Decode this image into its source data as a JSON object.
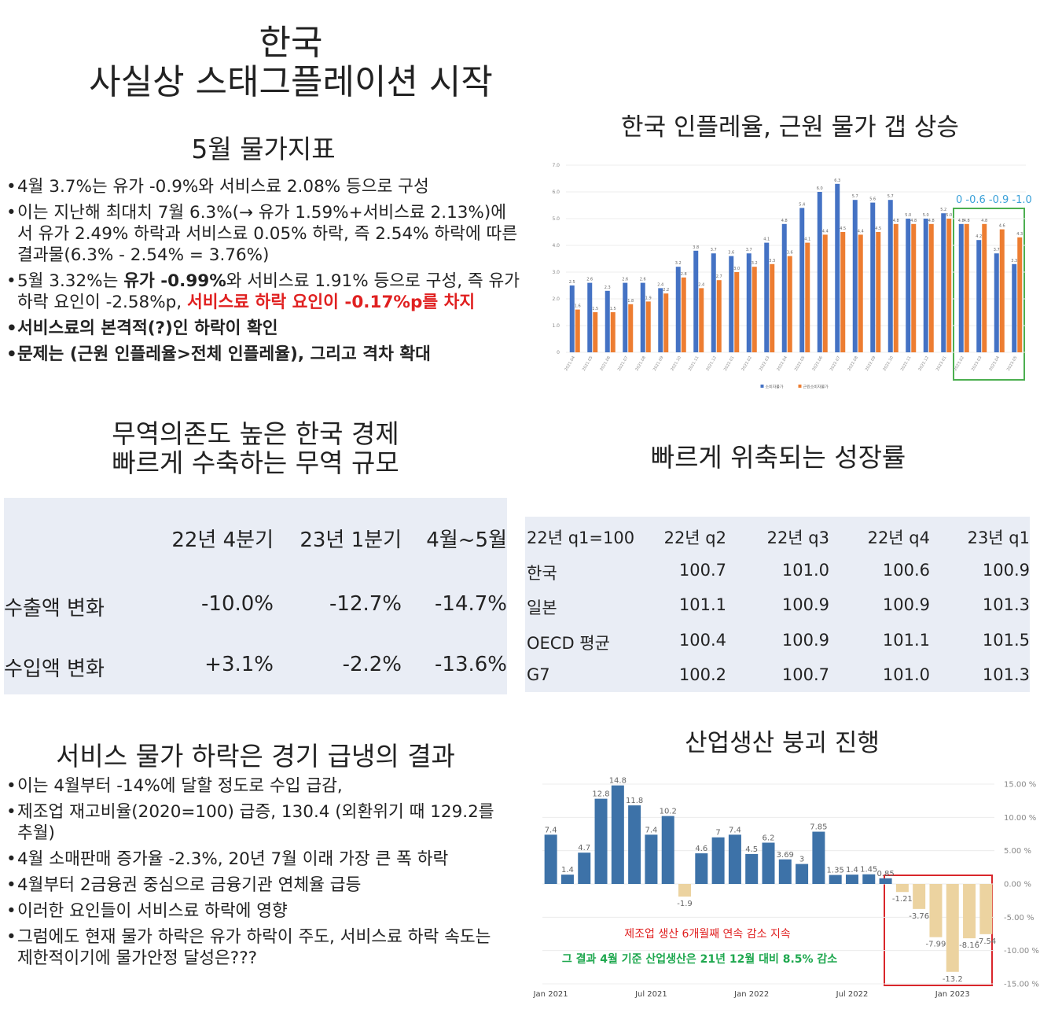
{
  "header": {
    "title_line1": "한국",
    "title_line2": "사실상 스태그플레이션 시작"
  },
  "cpi_section": {
    "title": "5월 물가지표",
    "bullets": [
      "4월 3.7%는 유가 -0.9%와 서비스료 2.08% 등으로 구성",
      "이는 지난해 최대치 7월 6.3%(→ 유가 1.59%+서비스료 2.13%)에서 유가 2.49% 하락과 서비스료 0.05% 하락, 즉 2.54% 하락에 따른 결과물(6.3% - 2.54% = 3.76%)",
      [
        "5월 3.32%는 ",
        "유가 -0.99%",
        "와 서비스료 1.91% 등으로 구성, 즉 유가 하락 요인이 -2.58%p, ",
        "서비스료 하락 요인이 -0.17%p를 차지"
      ],
      "서비스료의 본격적(?)인 하락이 확인",
      "문제는 (근원 인플레율>전체 인플레율), 그리고 격차 확대"
    ]
  },
  "trade_section": {
    "title_line1": "무역의존도 높은 한국 경제",
    "title_line2": "빠르게 수축하는 무역 규모",
    "table": {
      "columns": [
        "22년 4분기",
        "23년 1분기",
        "4월~5월"
      ],
      "rows": [
        {
          "label": "수출액 변화",
          "cells": [
            "-10.0%",
            "-12.7%",
            "-14.7%"
          ]
        },
        {
          "label": "수입액 변화",
          "cells": [
            "+3.1%",
            "-2.2%",
            "-13.6%"
          ]
        }
      ]
    }
  },
  "growth_section": {
    "title": "빠르게 위축되는 성장률",
    "table": {
      "columns": [
        "22년 q1=100",
        "22년 q2",
        "22년 q3",
        "22년 q4",
        "23년 q1"
      ],
      "rows": [
        {
          "label": "한국",
          "cells": [
            "100.7",
            "101.0",
            "100.6",
            "100.9"
          ]
        },
        {
          "label": "일본",
          "cells": [
            "101.1",
            "100.9",
            "100.9",
            "101.3"
          ]
        },
        {
          "label": "OECD 평균",
          "cells": [
            "100.4",
            "100.9",
            "101.1",
            "101.5"
          ]
        },
        {
          "label": "G7",
          "cells": [
            "100.2",
            "100.7",
            "101.0",
            "101.3"
          ]
        }
      ]
    }
  },
  "services_section": {
    "title": "서비스 물가 하락은 경기 급냉의 결과",
    "bullets": [
      "이는 4월부터 -14%에 달할 정도로 수입 급감,",
      "제조업 재고비율(2020=100) 급증, 130.4 (외환위기 때 129.2를 추월)",
      "4월 소매판매 증가율 -2.3%, 20년 7월 이래 가장 큰 폭 하락",
      "4월부터 2금융권 중심으로 금융기관 연체율 급등",
      "이러한 요인들이 서비스료 하락에 영향",
      "그럼에도 현재 물가 하락은 유가 하락이 주도, 서비스료 하락 속도는 제한적이기에 물가안정 달성은???"
    ]
  },
  "chart_data": [
    {
      "type": "bar",
      "title": "한국 인플레율, 근원 물가 갭 상승",
      "categories": [
        "2021.04",
        "2021.05",
        "2021.06",
        "2021.07",
        "2021.08",
        "2021.09",
        "2021.10",
        "2021.11",
        "2021.12",
        "2022.01",
        "2022.02",
        "2022.03",
        "2022.04",
        "2022.05",
        "2022.06",
        "2022.07",
        "2022.08",
        "2022.09",
        "2022.10",
        "2022.11",
        "2022.12",
        "2023.01",
        "2023.02",
        "2023.03",
        "2023.04",
        "2023.05"
      ],
      "series": [
        {
          "name": "소비자물가",
          "color": "#4472c4",
          "values": [
            2.5,
            2.6,
            2.3,
            2.6,
            2.6,
            2.4,
            3.2,
            3.8,
            3.7,
            3.6,
            3.7,
            4.1,
            4.8,
            5.4,
            6.0,
            6.3,
            5.7,
            5.6,
            5.7,
            5.0,
            5.0,
            5.2,
            4.8,
            4.2,
            3.7,
            3.3
          ],
          "value_labels": [
            "2.5",
            "2.6",
            "2.3",
            "2.6",
            "2.6",
            "2.4",
            "3.2",
            "3.8",
            "3.7",
            "3.6",
            "3.7",
            "4.1",
            "4.8",
            "5.4",
            "6.0",
            "6.3",
            "5.7",
            "5.6",
            "5.7",
            "5.0",
            "5.0",
            "5.2",
            "4.8",
            "4.2",
            "3.7",
            "3.3"
          ]
        },
        {
          "name": "근원소비자물가",
          "color": "#ed7d31",
          "values": [
            1.6,
            1.5,
            1.5,
            1.8,
            1.9,
            2.2,
            2.8,
            2.4,
            2.7,
            3.0,
            3.2,
            3.3,
            3.6,
            4.1,
            4.4,
            4.5,
            4.4,
            4.5,
            4.8,
            4.8,
            4.8,
            5.0,
            4.8,
            4.8,
            4.6,
            4.3
          ],
          "value_labels": [
            "1.6",
            "1.5",
            "1.5",
            "1.8",
            "1.9",
            "2.2",
            "2.8",
            "2.4",
            "2.7",
            "3.0",
            "3.2",
            "3.3",
            "3.6",
            "4.1",
            "4.4",
            "4.5",
            "4.4",
            "4.5",
            "4.8",
            "4.8",
            "4.8",
            "5.0",
            "4.8",
            "4.8",
            "4.6",
            "4.3"
          ]
        }
      ],
      "ylim": [
        0,
        7
      ],
      "yticks": [
        0,
        {
          "value": 1,
          "label": "1.0"
        },
        {
          "value": 2,
          "label": "2.0"
        },
        {
          "value": 3,
          "label": "3.0"
        },
        {
          "value": 4,
          "label": "4.0"
        },
        {
          "value": 5,
          "label": "5.0"
        },
        {
          "value": 6,
          "label": "6.0"
        },
        {
          "value": 7,
          "label": "7.0"
        }
      ],
      "grid": true,
      "legend": "bottom",
      "annotation": "0 -0.6 -0.9 -1.0"
    },
    {
      "type": "bar",
      "title": "산업생산 붕괴 진행",
      "categories": [
        "Jan 2021",
        null,
        null,
        null,
        null,
        null,
        "Jul 2021",
        null,
        null,
        null,
        null,
        null,
        "Jan 2022",
        null,
        null,
        null,
        null,
        null,
        "Jul 2022",
        null,
        null,
        null,
        null,
        null,
        "Jan 2023",
        null,
        null
      ],
      "series": [
        {
          "color": "#3d72a8",
          "negative_color": "#ecd3a0",
          "values": [
            7.4,
            1.4,
            4.7,
            12.8,
            14.8,
            11.8,
            7.4,
            10.2,
            -1.9,
            4.6,
            7,
            7.4,
            4.5,
            6.2,
            3.69,
            3,
            7.85,
            1.35,
            1.4,
            1.45,
            0.85,
            -1.21,
            -3.76,
            -7.99,
            -13.2,
            -8.16,
            -7.54
          ]
        }
      ],
      "ylim": [
        -15,
        15
      ],
      "yticks": [
        {
          "value": -15,
          "label": "-15.00 %"
        },
        {
          "value": -10,
          "label": "-10.00 %"
        },
        {
          "value": -5,
          "label": "-5.00 %"
        },
        {
          "value": 0,
          "label": "0.00 %"
        },
        {
          "value": 5,
          "label": "5.00 %"
        },
        {
          "value": 10,
          "label": "10.00 %"
        },
        {
          "value": 15,
          "label": "15.00 %"
        }
      ],
      "y_axis_side": "right",
      "grid": true,
      "annotations": [
        "제조업 생산 6개월째 연속 감소 지속",
        "그 결과 4월 기준 산업생산은 21년 12월 대비 8.5% 감소"
      ]
    }
  ]
}
